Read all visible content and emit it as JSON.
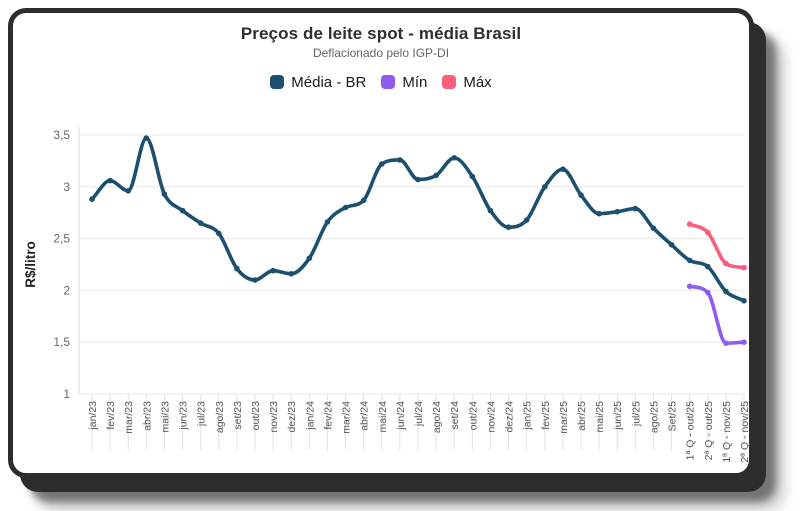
{
  "header": {
    "title": "Preços de leite spot - média Brasil",
    "subtitle": "Deflacionado pelo IGP-DI"
  },
  "colors": {
    "frame": "#2d2d2d",
    "card_background": "#ffffff",
    "grid": "#e8e8e8",
    "axis": "#d8d8d8",
    "tick_label": "#555555"
  },
  "chart_data": {
    "type": "line",
    "title": "Preços de leite spot - média Brasil",
    "subtitle": "Deflacionado pelo IGP-DI",
    "xlabel": "",
    "ylabel": "R$/litro",
    "ylim": [
      1,
      3.5
    ],
    "grid": "horizontal",
    "legend_position": "top",
    "yticks": [
      {
        "value": 1,
        "label": "1"
      },
      {
        "value": 1.5,
        "label": "1,5"
      },
      {
        "value": 2,
        "label": "2"
      },
      {
        "value": 2.5,
        "label": "2,5"
      },
      {
        "value": 3,
        "label": "3"
      },
      {
        "value": 3.5,
        "label": "3,5"
      }
    ],
    "categories": [
      "jan/23",
      "fev/23",
      "mar/23",
      "abr/23",
      "mai/23",
      "jun/23",
      "jul/23",
      "ago/23",
      "set/23",
      "out/23",
      "nov/23",
      "dez/23",
      "jan/24",
      "fev/24",
      "mar/24",
      "abr/24",
      "mai/24",
      "jun/24",
      "jul/24",
      "ago/24",
      "set/24",
      "out/24",
      "nov/24",
      "dez/24",
      "jan/25",
      "fev/25",
      "mar/25",
      "abr/25",
      "mai/25",
      "jun/25",
      "jul/25",
      "ago/25",
      "Set/25",
      "1ª Q - out/25",
      "2ª Q - out/25",
      "1ª Q - nov/25",
      "2ª Q - nov/25"
    ],
    "series": [
      {
        "name": "Média - BR",
        "slug": "media-br",
        "color": "#1d506f",
        "start_index": 0,
        "values": [
          2.88,
          3.06,
          2.96,
          3.47,
          2.93,
          2.77,
          2.65,
          2.55,
          2.21,
          2.1,
          2.19,
          2.16,
          2.31,
          2.66,
          2.8,
          2.87,
          3.22,
          3.26,
          3.07,
          3.11,
          3.28,
          3.1,
          2.77,
          2.61,
          2.68,
          3.0,
          3.17,
          2.92,
          2.74,
          2.76,
          2.79,
          2.6,
          2.44,
          2.29,
          2.23,
          1.99,
          1.9
        ]
      },
      {
        "name": "Mín",
        "slug": "min",
        "color": "#8f5cf0",
        "start_index": 33,
        "values": [
          2.04,
          1.98,
          1.49,
          1.5
        ]
      },
      {
        "name": "Máx",
        "slug": "max",
        "color": "#fa5e7c",
        "start_index": 33,
        "values": [
          2.64,
          2.56,
          2.26,
          2.22
        ]
      }
    ]
  }
}
